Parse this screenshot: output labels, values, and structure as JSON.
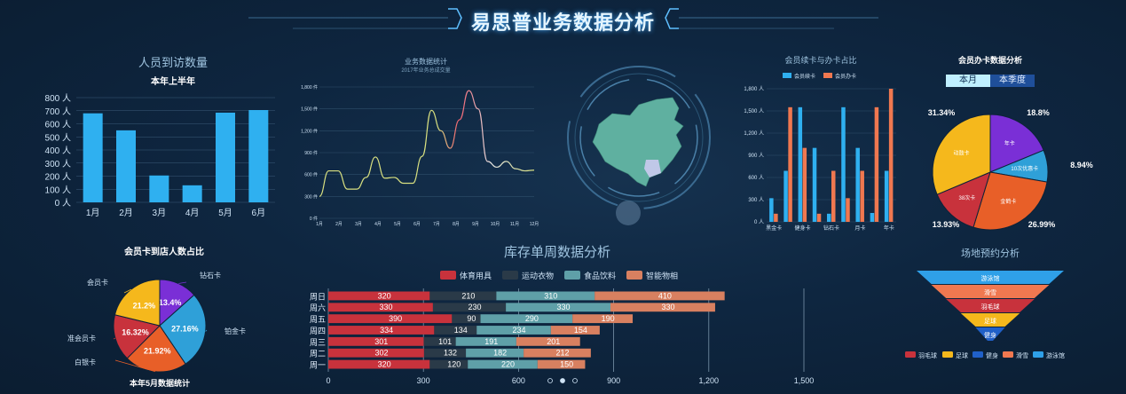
{
  "page_title": "易思普业务数据分析",
  "charts": [
    {
      "type": "bar",
      "title": "人员到访数量",
      "subtitle": "本年上半年",
      "categories": [
        "1月",
        "2月",
        "3月",
        "4月",
        "5月",
        "6月"
      ],
      "values": [
        680,
        550,
        205,
        130,
        685,
        705
      ],
      "y_ticks": [
        "0 人",
        "100 人",
        "200 人",
        "300 人",
        "400 人",
        "500 人",
        "600 人",
        "700 人",
        "800 人"
      ],
      "ylim": [
        0,
        800
      ],
      "color": "#2fb0f0"
    },
    {
      "type": "line",
      "title": "业务数据统计",
      "subtitle": "2017年业务总成交量",
      "categories": [
        "1月",
        "2月",
        "3月",
        "4月",
        "5月",
        "6月",
        "7月",
        "8月",
        "9月",
        "10月",
        "11月",
        "12月"
      ],
      "y_ticks": [
        "0 件",
        "300 件",
        "600 件",
        "900 件",
        "1,200 件",
        "1,500 件",
        "1,800 件"
      ],
      "ylim": [
        0,
        1800
      ],
      "x": [
        0.5,
        1,
        1.5,
        2,
        2.5,
        3,
        3.5,
        4,
        4.5,
        5,
        5.5,
        6,
        6.5,
        7,
        7.5,
        8,
        8.5,
        9,
        9.5,
        10,
        10.5,
        11,
        11.5,
        12
      ],
      "values": [
        300,
        650,
        650,
        400,
        400,
        560,
        840,
        550,
        560,
        480,
        480,
        850,
        1480,
        1200,
        960,
        1350,
        1750,
        1500,
        780,
        700,
        780,
        680,
        650,
        660
      ]
    },
    {
      "type": "bar",
      "title": "会员续卡与办卡占比",
      "legend": [
        "会员续卡",
        "会员办卡"
      ],
      "categories": [
        "黑金卡",
        "",
        "健身卡",
        "",
        "钻石卡",
        "",
        "月卡",
        "",
        "年卡"
      ],
      "series": [
        {
          "name": "会员续卡",
          "color": "#2fb0f0",
          "values": [
            320,
            690,
            1550,
            1000,
            110,
            1550,
            1000,
            120,
            690
          ]
        },
        {
          "name": "会员办卡",
          "color": "#f07850",
          "values": [
            110,
            1550,
            1000,
            110,
            690,
            320,
            690,
            1550,
            1800
          ]
        }
      ],
      "y_ticks": [
        "0 人",
        "300 人",
        "600 人",
        "900 人",
        "1,200 人",
        "1,500 人",
        "1,800 人"
      ],
      "ylim": [
        0,
        1800
      ]
    },
    {
      "type": "pie",
      "title": "会员办卡数据分析",
      "tabs": [
        "本月",
        "本季度"
      ],
      "slices": [
        {
          "label": "年卡",
          "value": 18.8,
          "pct": "18.8%",
          "color": "#7a2fd6"
        },
        {
          "label": "10次优惠卡",
          "value": 8.94,
          "pct": "8.94%",
          "color": "#2fa0d8"
        },
        {
          "label": "金鹤卡",
          "value": 26.99,
          "pct": "26.99%",
          "color": "#e85f28"
        },
        {
          "label": "38次卡",
          "value": 13.93,
          "pct": "13.93%",
          "color": "#c8323c"
        },
        {
          "label": "动鼓卡",
          "value": 31.34,
          "pct": "31.34%",
          "color": "#f5b81c"
        }
      ]
    },
    {
      "type": "pie",
      "title": "会员卡到店人数占比",
      "footer": "本年5月数据统计",
      "slices": [
        {
          "label": "钻石卡",
          "value": 13.4,
          "pct": "13.4%",
          "color": "#7a2fd6"
        },
        {
          "label": "铂金卡",
          "value": 27.16,
          "pct": "27.16%",
          "color": "#2fa0d8"
        },
        {
          "label": "白银卡",
          "value": 21.92,
          "pct": "21.92%",
          "color": "#e85f28"
        },
        {
          "label": "准会员卡",
          "value": 16.32,
          "pct": "16.32%",
          "color": "#c8323c"
        },
        {
          "label": "会员卡",
          "value": 21.2,
          "pct": "21.2%",
          "color": "#f5b81c"
        }
      ]
    },
    {
      "type": "bar",
      "title": "库存单周数据分析",
      "orientation": "horizontal-stacked",
      "categories": [
        "周一",
        "周二",
        "周三",
        "周四",
        "周五",
        "周六",
        "周日"
      ],
      "series": [
        {
          "name": "体育用具",
          "color": "#c8323c",
          "values": [
            320,
            302,
            301,
            334,
            390,
            330,
            320
          ]
        },
        {
          "name": "运动衣物",
          "color": "#2a3a48",
          "values": [
            120,
            132,
            101,
            134,
            90,
            230,
            210
          ]
        },
        {
          "name": "食品饮料",
          "color": "#5fa0a8",
          "values": [
            220,
            182,
            191,
            234,
            290,
            330,
            310
          ]
        },
        {
          "name": "智能物相",
          "color": "#d88060",
          "values": [
            150,
            212,
            201,
            154,
            190,
            330,
            410
          ]
        }
      ],
      "x_ticks": [
        "0",
        "300",
        "600",
        "900",
        "1,200",
        "1,500"
      ],
      "xlim": [
        0,
        1500
      ]
    },
    {
      "type": "bar",
      "title": "场地预约分析",
      "orientation": "funnel",
      "levels": [
        {
          "label": "游泳馆",
          "color": "#2fa0e8",
          "value": 5
        },
        {
          "label": "滑雪",
          "color": "#f07850",
          "value": 4
        },
        {
          "label": "羽毛球",
          "color": "#c8323c",
          "value": 3
        },
        {
          "label": "足球",
          "color": "#f5b81c",
          "value": 2
        },
        {
          "label": "健身",
          "color": "#2060c8",
          "value": 1
        }
      ],
      "legend": [
        {
          "label": "羽毛球",
          "color": "#c8323c"
        },
        {
          "label": "足球",
          "color": "#f5b81c"
        },
        {
          "label": "健身",
          "color": "#2060c8"
        },
        {
          "label": "滑雪",
          "color": "#f07850"
        },
        {
          "label": "游泳馆",
          "color": "#2fa0e8"
        }
      ]
    }
  ]
}
